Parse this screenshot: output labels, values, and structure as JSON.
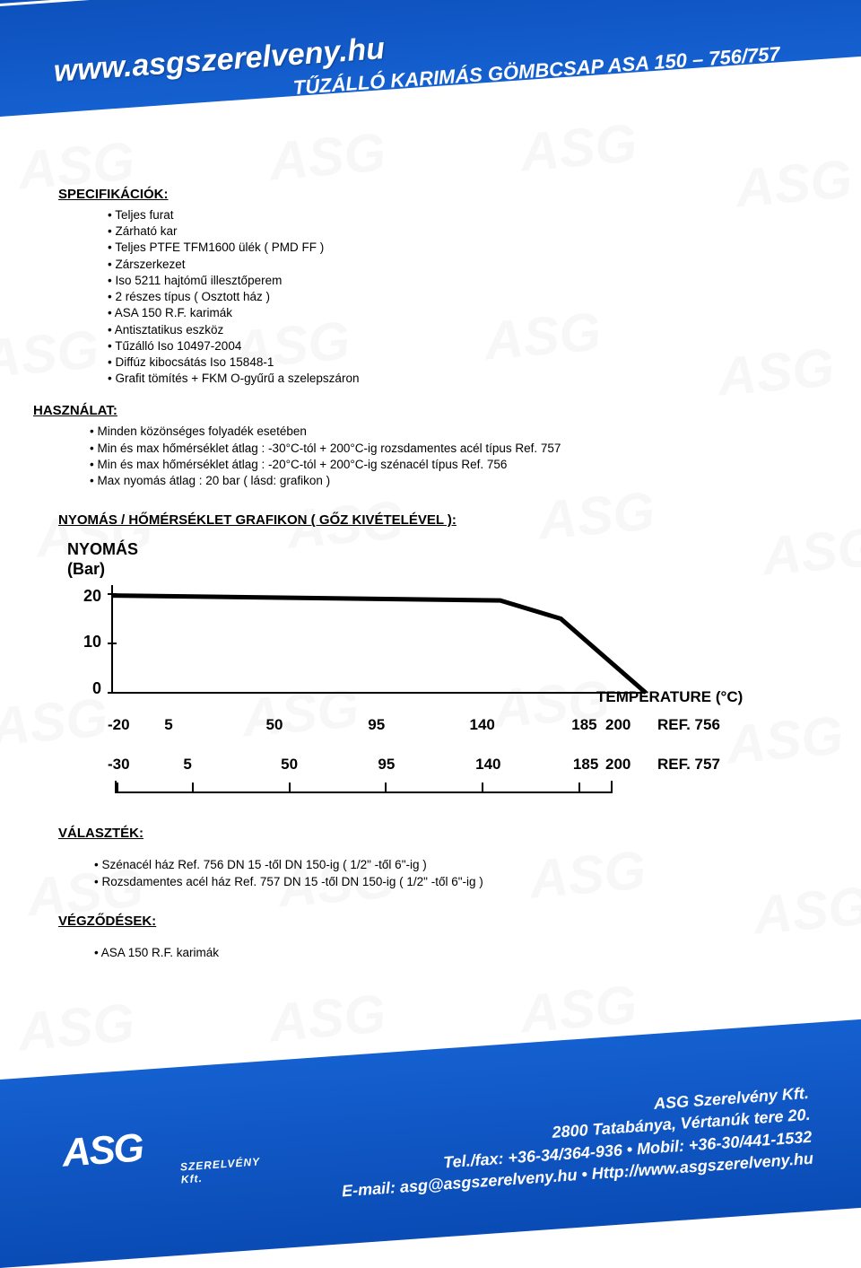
{
  "header": {
    "url": "www.asgszerelveny.hu",
    "title": "TŰZÁLLÓ KARIMÁS GÖMBCSAP ASA 150 – 756/757"
  },
  "watermark_text": "ASG",
  "spec": {
    "heading": "SPECIFIKÁCIÓK:",
    "items": [
      "Teljes furat",
      "Zárható kar",
      "Teljes PTFE TFM1600 ülék ( PMD FF )",
      "Zárszerkezet",
      "Iso 5211 hajtómű illesztőperem",
      "2 részes típus ( Osztott ház )",
      "ASA 150 R.F. karimák",
      "Antisztatikus eszköz",
      "Tűzálló  Iso 10497-2004",
      "Diffúz kibocsátás Iso 15848-1",
      "Grafit tömítés + FKM O-gyűrű a szelepszáron"
    ]
  },
  "usage": {
    "heading": "HASZNÁLAT:",
    "items": [
      "Minden közönséges folyadék esetében",
      "Min és max hőmérséklet átlag : -30°C-tól   + 200°C-ig   rozsdamentes acél típus Ref. 757",
      "Min és max hőmérséklet átlag : -20°C-tól   + 200°C-ig   szénacél   típus Ref. 756",
      "Max nyomás átlag : 20 bar ( lásd: grafikon )"
    ]
  },
  "chart": {
    "heading": "NYOMÁS / HŐMÉRSÉKLET GRAFIKON ( GŐZ KIVÉTELÉVEL ):",
    "ylabel": "NYOMÁS",
    "yunit": "(Bar)",
    "xlabel": "TEMPERATURE (°C)",
    "yticks": [
      {
        "label": "20",
        "value": 20
      },
      {
        "label": "10",
        "value": 10
      },
      {
        "label": "0",
        "value": 0
      }
    ],
    "ylim": [
      0,
      20
    ],
    "xlim_756": [
      -20,
      200
    ],
    "xlim_757": [
      -30,
      200
    ],
    "line_points": [
      {
        "x": -20,
        "y": 19.7
      },
      {
        "x": 140,
        "y": 18.7
      },
      {
        "x": 165,
        "y": 15
      },
      {
        "x": 200,
        "y": 0
      }
    ],
    "line_color": "#000000",
    "line_width": 5,
    "axis_color": "#000000",
    "background": "#ffffff",
    "xaxis_756": {
      "ticks": [
        "-20",
        "5",
        "50",
        "95",
        "140",
        "185",
        "200"
      ],
      "positions": [
        0,
        0.114,
        0.318,
        0.523,
        0.727,
        0.932,
        1.0
      ],
      "ref": "REF. 756"
    },
    "xaxis_757": {
      "ticks": [
        "-30",
        "5",
        "50",
        "95",
        "140",
        "185",
        "200"
      ],
      "positions": [
        0,
        0.152,
        0.348,
        0.543,
        0.739,
        0.935,
        1.0
      ],
      "ref": "REF. 757"
    }
  },
  "range": {
    "heading": "VÁLASZTÉK:",
    "items": [
      "Szénacél  ház Ref. 756 DN 15 -től DN 150-ig ( 1/2\" -től 6\"-ig )",
      "Rozsdamentes acél ház Ref. 757 DN 15 -től DN 150-ig ( 1/2\" -től 6\"-ig )"
    ]
  },
  "endings": {
    "heading": "VÉGZŐDÉSEK:",
    "items": [
      "ASA 150 R.F. karimák"
    ]
  },
  "footer": {
    "logo_main": "ASG",
    "logo_sub1": "SZERELVÉNY",
    "logo_sub2": "Kft.",
    "lines": [
      "ASG Szerelvény Kft.",
      "2800 Tatabánya, Vértanúk tere 20.",
      "Tel./fax: +36-34/364-936 • Mobil: +36-30/441-1532",
      "E-mail: asg@asgszerelveny.hu • Http://www.asgszerelveny.hu"
    ]
  },
  "colors": {
    "blue_dark": "#0a4bb5",
    "blue_light": "#1560d0",
    "white": "#ffffff",
    "black": "#000000"
  }
}
